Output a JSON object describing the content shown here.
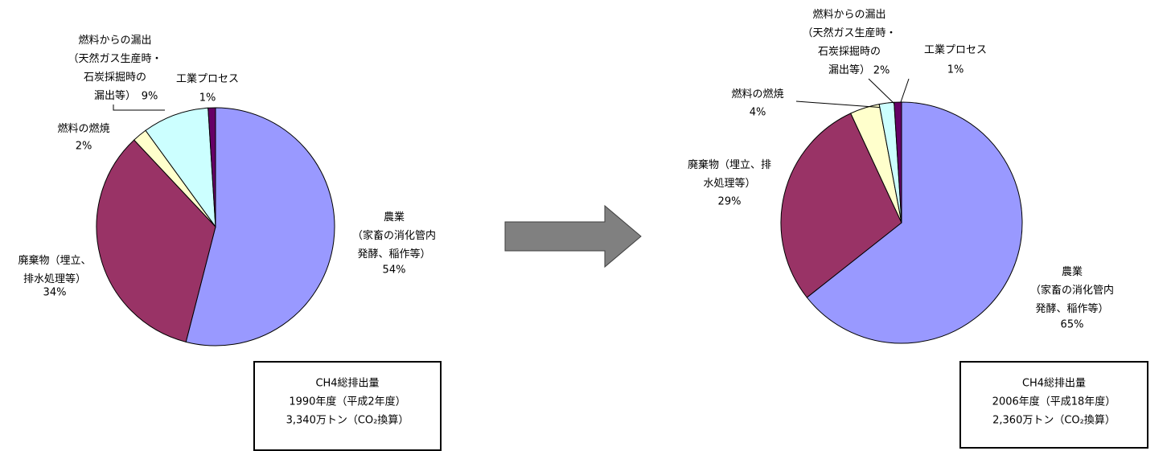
{
  "chart_data": [
    {
      "type": "pie",
      "categories": [
        "農業\n（家畜の消化管内\n発酵、稲作等）",
        "廃棄物（埋立、\n排水処理等）",
        "燃料の燃焼",
        "燃料からの漏出\n（天然ガス生産時・\n石炭採掘時の\n漏出等）",
        "工業プロセス"
      ],
      "values": [
        54,
        34,
        2,
        9,
        1
      ],
      "value_labels": [
        "54%",
        "34%",
        "2%",
        "9%",
        "1%"
      ],
      "colors": [
        "#9999ff",
        "#993366",
        "#ffffcc",
        "#ccffff",
        "#660066"
      ],
      "note": [
        "CH4総排出量",
        "1990年度（平成2年度）",
        "3,340万トン（CO₂換算）"
      ]
    },
    {
      "type": "pie",
      "categories": [
        "農業\n（家畜の消化管内\n発酵、稲作等）",
        "廃棄物（埋立、排\n水処理等）",
        "燃料の燃焼",
        "燃料からの漏出\n（天然ガス生産時・\n石炭採掘時の\n漏出等）",
        "工業プロセス"
      ],
      "values": [
        65,
        29,
        4,
        2,
        1
      ],
      "value_labels": [
        "65%",
        "29%",
        "4%",
        "2%",
        "1%"
      ],
      "colors": [
        "#9999ff",
        "#993366",
        "#ffffcc",
        "#ccffff",
        "#660066"
      ],
      "note": [
        "CH4総排出量",
        "2006年度（平成18年度）",
        "2,360万トン（CO₂換算）"
      ]
    }
  ]
}
